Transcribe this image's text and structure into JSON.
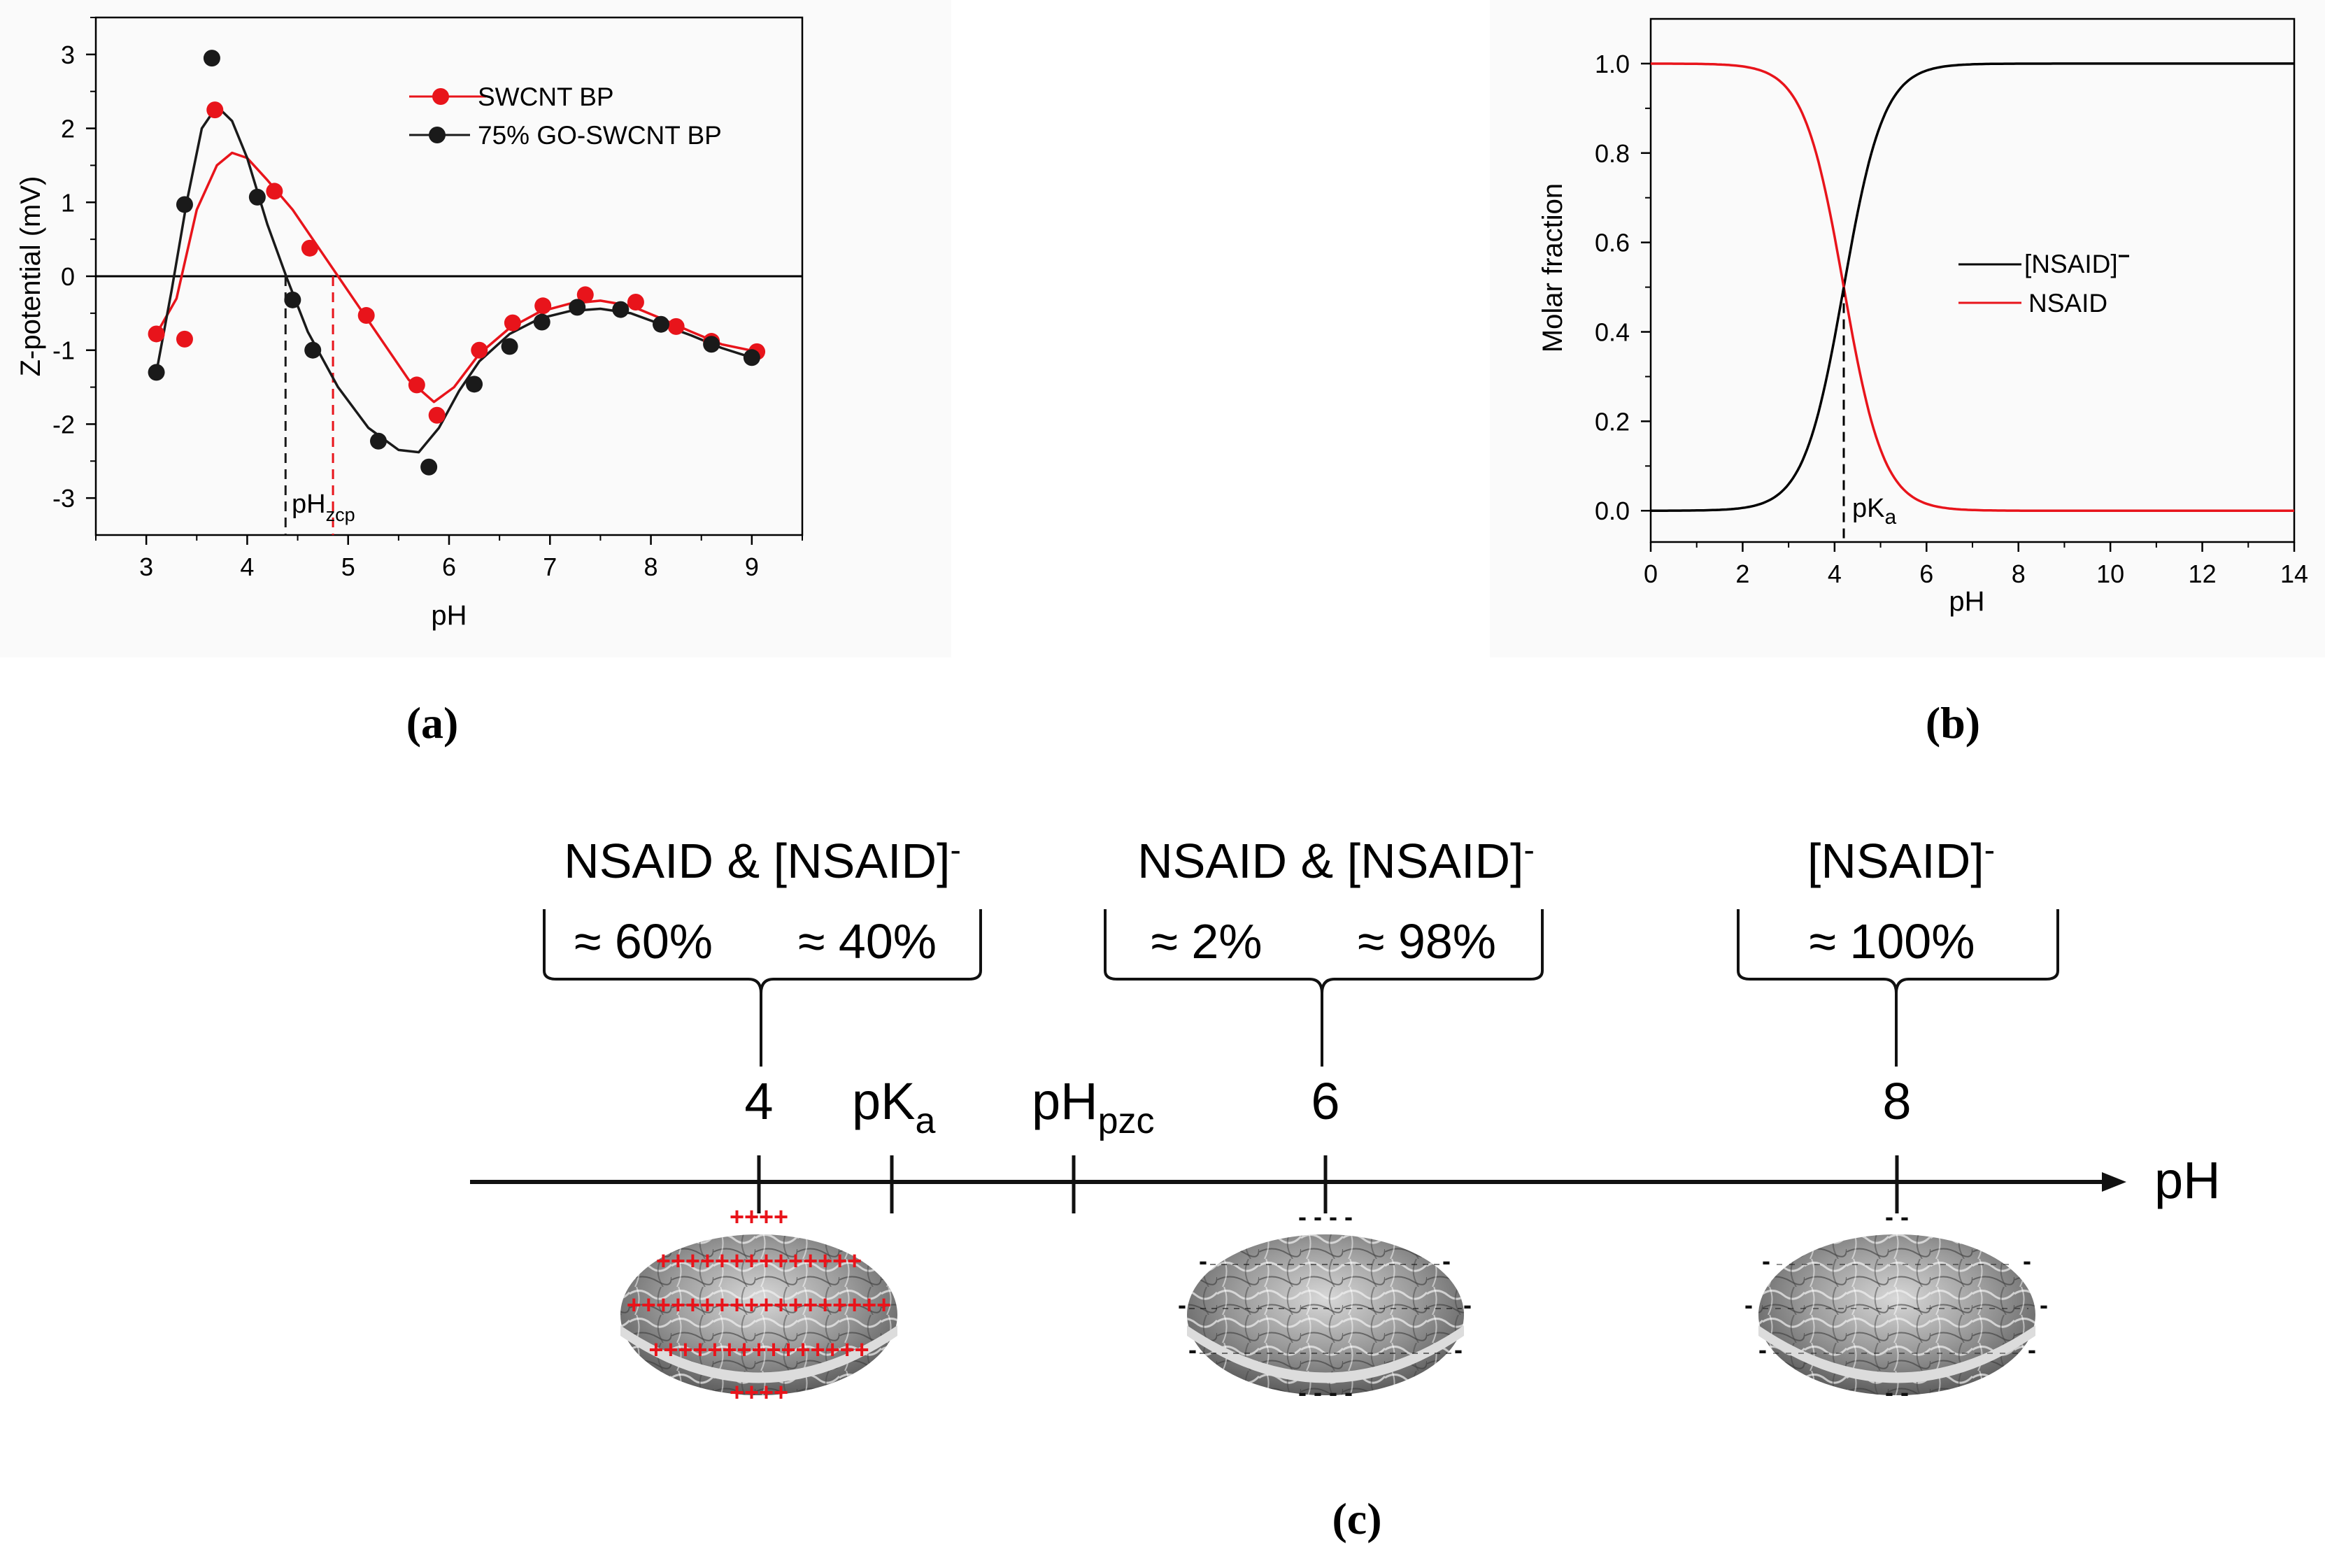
{
  "chart_data": [
    {
      "id": "a",
      "type": "scatter",
      "panel_label": "(a)",
      "xlabel": "pH",
      "ylabel": "Z-potential (mV)",
      "xlim": [
        2.5,
        9.5
      ],
      "ylim": [
        -3.5,
        3.5
      ],
      "xticks": [
        3,
        4,
        5,
        6,
        7,
        8,
        9
      ],
      "yticks": [
        -3,
        -2,
        -1,
        0,
        1,
        2,
        3
      ],
      "zero_line": 0,
      "legend": "top-right",
      "series": [
        {
          "name": "SWCNT BP",
          "color": "#e8141b",
          "points": [
            [
              3.1,
              -0.78
            ],
            [
              3.38,
              -0.85
            ],
            [
              3.68,
              2.25
            ],
            [
              4.27,
              1.15
            ],
            [
              4.62,
              0.38
            ],
            [
              5.18,
              -0.53
            ],
            [
              5.68,
              -1.47
            ],
            [
              5.88,
              -1.88
            ],
            [
              6.3,
              -1.0
            ],
            [
              6.63,
              -0.63
            ],
            [
              6.93,
              -0.4
            ],
            [
              7.35,
              -0.25
            ],
            [
              7.85,
              -0.35
            ],
            [
              8.25,
              -0.68
            ],
            [
              8.6,
              -0.88
            ],
            [
              9.05,
              -1.02
            ]
          ],
          "fit": [
            [
              3.1,
              -0.78
            ],
            [
              3.3,
              -0.3
            ],
            [
              3.5,
              0.9
            ],
            [
              3.7,
              1.5
            ],
            [
              3.85,
              1.67
            ],
            [
              4.0,
              1.6
            ],
            [
              4.2,
              1.3
            ],
            [
              4.45,
              0.9
            ],
            [
              4.7,
              0.4
            ],
            [
              5.0,
              -0.2
            ],
            [
              5.3,
              -0.8
            ],
            [
              5.6,
              -1.4
            ],
            [
              5.85,
              -1.7
            ],
            [
              6.05,
              -1.5
            ],
            [
              6.3,
              -1.05
            ],
            [
              6.6,
              -0.7
            ],
            [
              6.9,
              -0.48
            ],
            [
              7.2,
              -0.37
            ],
            [
              7.5,
              -0.33
            ],
            [
              7.8,
              -0.4
            ],
            [
              8.1,
              -0.57
            ],
            [
              8.4,
              -0.75
            ],
            [
              8.7,
              -0.92
            ],
            [
              9.05,
              -1.02
            ]
          ],
          "ph_zcp": 4.85
        },
        {
          "name": "75% GO-SWCNT BP",
          "color": "#1a1a1a",
          "points": [
            [
              3.1,
              -1.3
            ],
            [
              3.38,
              0.97
            ],
            [
              3.65,
              2.95
            ],
            [
              4.1,
              1.07
            ],
            [
              4.45,
              -0.32
            ],
            [
              4.65,
              -1.0
            ],
            [
              5.3,
              -2.23
            ],
            [
              5.8,
              -2.58
            ],
            [
              6.25,
              -1.46
            ],
            [
              6.6,
              -0.95
            ],
            [
              6.92,
              -0.62
            ],
            [
              7.27,
              -0.42
            ],
            [
              7.7,
              -0.45
            ],
            [
              8.1,
              -0.65
            ],
            [
              8.6,
              -0.92
            ],
            [
              9.0,
              -1.1
            ]
          ],
          "fit": [
            [
              3.1,
              -1.3
            ],
            [
              3.25,
              -0.2
            ],
            [
              3.4,
              1.0
            ],
            [
              3.55,
              2.0
            ],
            [
              3.7,
              2.3
            ],
            [
              3.85,
              2.1
            ],
            [
              4.0,
              1.6
            ],
            [
              4.2,
              0.7
            ],
            [
              4.4,
              -0.05
            ],
            [
              4.6,
              -0.75
            ],
            [
              4.9,
              -1.5
            ],
            [
              5.2,
              -2.05
            ],
            [
              5.5,
              -2.35
            ],
            [
              5.7,
              -2.38
            ],
            [
              5.9,
              -2.05
            ],
            [
              6.1,
              -1.55
            ],
            [
              6.3,
              -1.15
            ],
            [
              6.6,
              -0.78
            ],
            [
              6.9,
              -0.57
            ],
            [
              7.2,
              -0.47
            ],
            [
              7.5,
              -0.44
            ],
            [
              7.8,
              -0.5
            ],
            [
              8.1,
              -0.65
            ],
            [
              8.4,
              -0.8
            ],
            [
              8.7,
              -0.97
            ],
            [
              9.0,
              -1.1
            ]
          ],
          "ph_zcp": 4.38
        }
      ],
      "annotation": {
        "main": "pH",
        "sub": "zcp"
      }
    },
    {
      "id": "b",
      "type": "line",
      "panel_label": "(b)",
      "xlabel": "pH",
      "ylabel": "Molar fraction",
      "xlim": [
        0,
        14
      ],
      "ylim": [
        -0.07,
        1.1
      ],
      "xticks": [
        0,
        2,
        4,
        6,
        8,
        10,
        12,
        14
      ],
      "yticks": [
        0.0,
        0.2,
        0.4,
        0.6,
        0.8,
        1.0
      ],
      "ytick_labels": [
        "0.0",
        "0.2",
        "0.4",
        "0.6",
        "0.8",
        "1.0"
      ],
      "legend": "center-right",
      "pKa": 4.2,
      "annotation": {
        "main": "pK",
        "sub": "a"
      },
      "series": [
        {
          "name": "[NSAID]",
          "superscript": "−",
          "color": "#000000",
          "function": "deprotonated fraction 1/(1+10^(pKa-pH))"
        },
        {
          "name": "NSAID",
          "color": "#e8141b",
          "function": "protonated fraction 1/(1+10^(pH-pKa))"
        }
      ]
    }
  ],
  "diagram_c": {
    "panel_label": "(c)",
    "axis_label": "pH",
    "ticks": [
      {
        "label": "4"
      },
      {
        "main": "pK",
        "sub": "a"
      },
      {
        "main": "pH",
        "sub": "pzc"
      },
      {
        "label": "6"
      },
      {
        "label": "8"
      }
    ],
    "groups": [
      {
        "title": "NSAID & [NSAID]",
        "title_sup": "-",
        "left_value": "≈ 60%",
        "right_value": "≈ 40%",
        "surface_charge": "positive"
      },
      {
        "title": "NSAID & [NSAID]",
        "title_sup": "-",
        "left_value": "≈ 2%",
        "right_value": "≈ 98%",
        "surface_charge": "negative-strong"
      },
      {
        "title": "[NSAID]",
        "title_sup": "-",
        "value": "≈ 100%",
        "surface_charge": "negative-weak"
      }
    ],
    "plus_rows": [
      "++++",
      "++++++++++++++",
      "++++++++++++++++++",
      "+++++++++++++++",
      "++++"
    ],
    "minus_short": "- - - -",
    "minus_pair": "-  -",
    "minus_single": "-",
    "colors": {
      "plus": "#e8141b",
      "minus": "#111111"
    }
  }
}
